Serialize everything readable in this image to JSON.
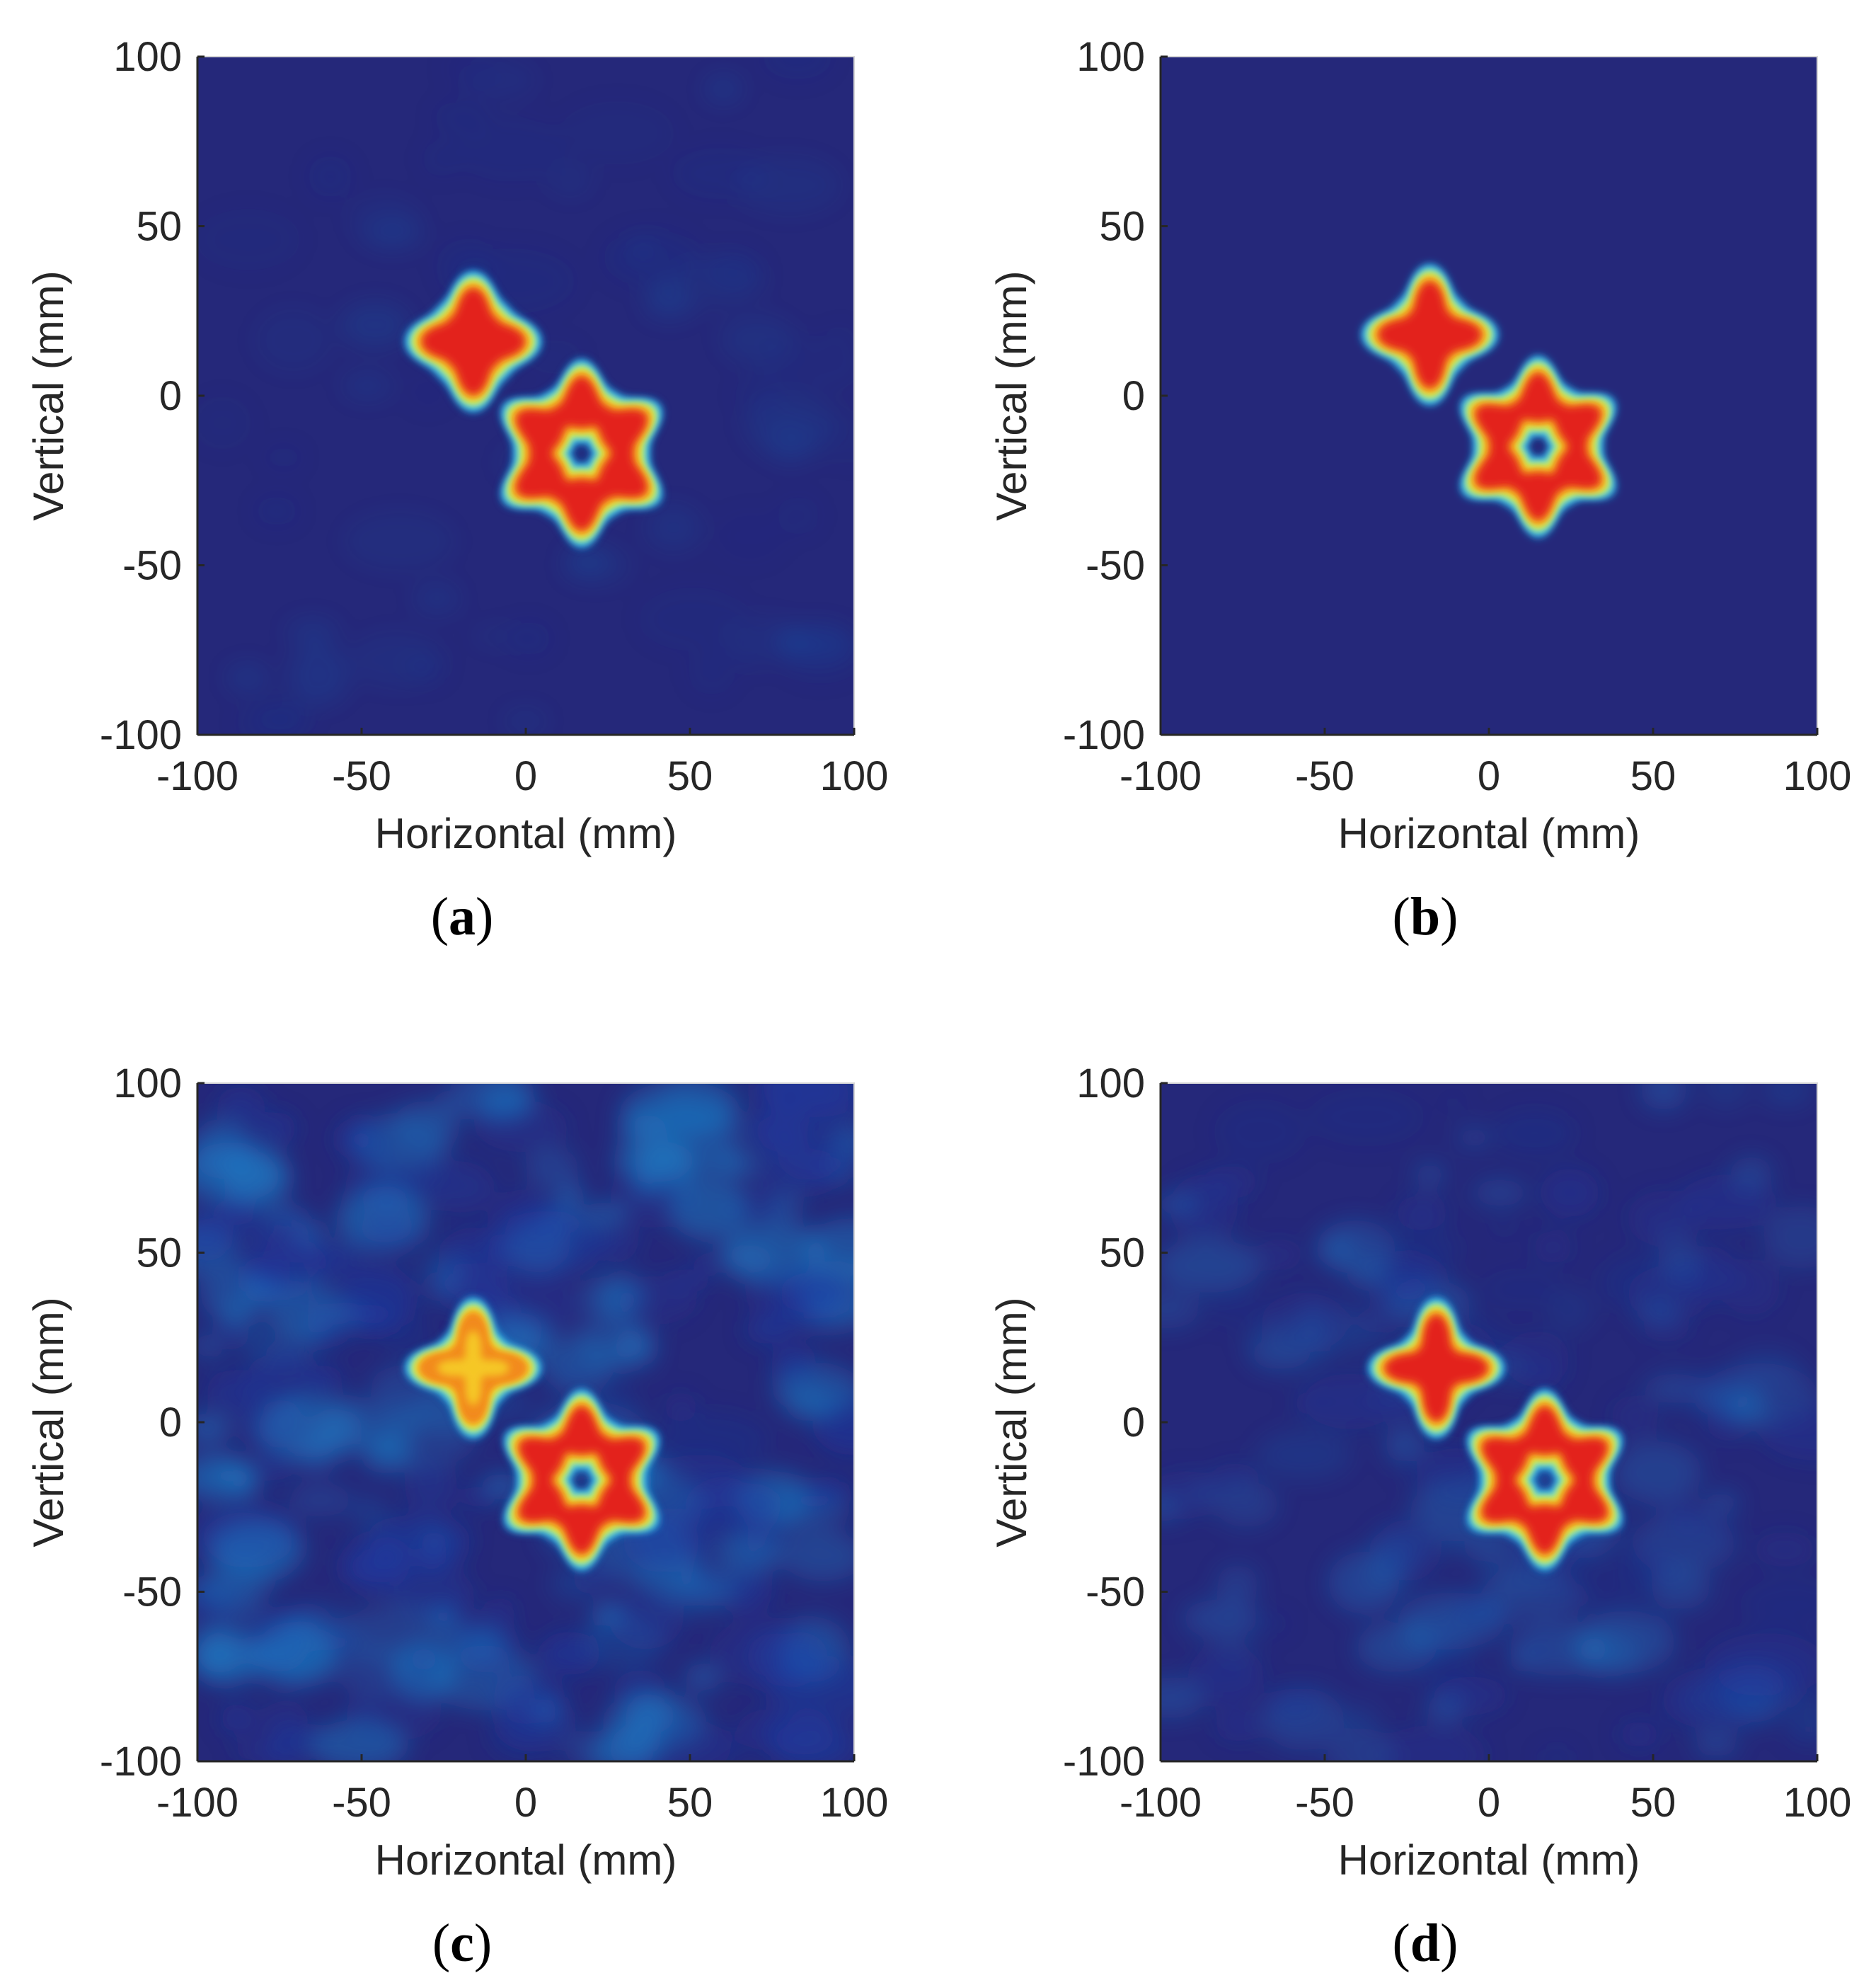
{
  "figure": {
    "colormap": [
      "#25287a",
      "#1e3fa8",
      "#1b8fd6",
      "#5fd6f0",
      "#b8f070",
      "#f7e12a",
      "#f28a1c",
      "#e3241c"
    ],
    "background_level": "#25287a"
  },
  "chart_data": [
    {
      "panel_label": "a",
      "type": "heatmap",
      "xlabel": "Horizontal (mm)",
      "ylabel": "Vertical (mm)",
      "xlim": [
        -100,
        100
      ],
      "ylim": [
        -100,
        100
      ],
      "xticks": [
        -100,
        -50,
        0,
        50,
        100
      ],
      "yticks": [
        100,
        50,
        0,
        -50,
        -100
      ],
      "xtick_labels": [
        "-100",
        "-50",
        "0",
        "50",
        "100"
      ],
      "ytick_labels": [
        "100",
        "50",
        "0",
        "-50",
        "-100"
      ],
      "noise": "low",
      "objects": [
        {
          "shape": "4-point star",
          "center": [
            -16,
            16
          ],
          "outer_radius": 17,
          "inner_radius": 11,
          "rotation_deg": 0,
          "hole_radius": 0,
          "intensity": 1.0
        },
        {
          "shape": "6-point star",
          "center": [
            17,
            -17
          ],
          "outer_radius": 24,
          "inner_radius": 17,
          "rotation_deg": 90,
          "hole_radius": 7,
          "intensity": 1.0
        }
      ]
    },
    {
      "panel_label": "b",
      "type": "heatmap",
      "xlabel": "Horizontal (mm)",
      "ylabel": "Vertical (mm)",
      "xlim": [
        -100,
        100
      ],
      "ylim": [
        -100,
        100
      ],
      "xticks": [
        -100,
        -50,
        0,
        50,
        100
      ],
      "yticks": [
        100,
        50,
        0,
        -50,
        -100
      ],
      "xtick_labels": [
        "-100",
        "-50",
        "0",
        "50",
        "100"
      ],
      "ytick_labels": [
        "100",
        "50",
        "0",
        "-50",
        "-100"
      ],
      "noise": "none",
      "objects": [
        {
          "shape": "4-point star",
          "center": [
            -18,
            18
          ],
          "outer_radius": 17,
          "inner_radius": 10,
          "rotation_deg": 0,
          "hole_radius": 0,
          "intensity": 1.0
        },
        {
          "shape": "6-point star",
          "center": [
            15,
            -15
          ],
          "outer_radius": 23,
          "inner_radius": 16,
          "rotation_deg": 90,
          "hole_radius": 7,
          "intensity": 1.0
        }
      ]
    },
    {
      "panel_label": "c",
      "type": "heatmap",
      "xlabel": "Horizontal (mm)",
      "ylabel": "Vertical (mm)",
      "xlim": [
        -100,
        100
      ],
      "ylim": [
        -100,
        100
      ],
      "xticks": [
        -100,
        -50,
        0,
        50,
        100
      ],
      "yticks": [
        100,
        50,
        0,
        -50,
        -100
      ],
      "xtick_labels": [
        "-100",
        "-50",
        "0",
        "50",
        "100"
      ],
      "ytick_labels": [
        "100",
        "50",
        "0",
        "-50",
        "-100"
      ],
      "noise": "high",
      "objects": [
        {
          "shape": "4-point star",
          "center": [
            -16,
            16
          ],
          "outer_radius": 17,
          "inner_radius": 9,
          "rotation_deg": 0,
          "hole_radius": 0,
          "intensity": 0.78
        },
        {
          "shape": "6-point star",
          "center": [
            17,
            -17
          ],
          "outer_radius": 23,
          "inner_radius": 16,
          "rotation_deg": 90,
          "hole_radius": 7,
          "intensity": 1.0
        }
      ]
    },
    {
      "panel_label": "d",
      "type": "heatmap",
      "xlabel": "Horizontal (mm)",
      "ylabel": "Vertical (mm)",
      "xlim": [
        -100,
        100
      ],
      "ylim": [
        -100,
        100
      ],
      "xticks": [
        -100,
        -50,
        0,
        50,
        100
      ],
      "yticks": [
        100,
        50,
        0,
        -50,
        -100
      ],
      "xtick_labels": [
        "-100",
        "-50",
        "0",
        "50",
        "100"
      ],
      "ytick_labels": [
        "100",
        "50",
        "0",
        "-50",
        "-100"
      ],
      "noise": "medium",
      "objects": [
        {
          "shape": "4-point star",
          "center": [
            -16,
            16
          ],
          "outer_radius": 17,
          "inner_radius": 9,
          "rotation_deg": 0,
          "hole_radius": 0,
          "intensity": 1.0
        },
        {
          "shape": "6-point star",
          "center": [
            17,
            -17
          ],
          "outer_radius": 23,
          "inner_radius": 16,
          "rotation_deg": 90,
          "hole_radius": 7,
          "intensity": 1.0
        }
      ]
    }
  ]
}
